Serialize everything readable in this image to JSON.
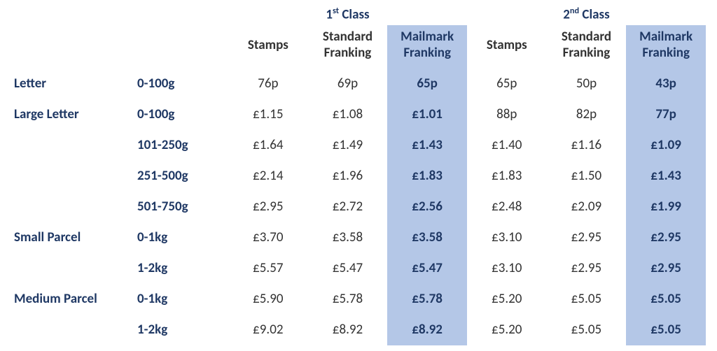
{
  "colors": {
    "brand_navy": "#1f3864",
    "mailmark_bg": "#b4c7e7",
    "text_default": "#333333",
    "background": "#ffffff"
  },
  "typography": {
    "font_family": "Calibri",
    "header_fontsize_pt": 14,
    "cell_fontsize_pt": 14
  },
  "headers": {
    "class1_pre": "1",
    "class1_sup": "st",
    "class1_post": " Class",
    "class2_pre": "2",
    "class2_sup": "nd",
    "class2_post": " Class",
    "sub_stamps": "Stamps",
    "sub_std_l1": "Standard",
    "sub_std_l2": "Franking",
    "sub_mm_l1": "Mailmark",
    "sub_mm_l2": "Franking"
  },
  "rows": [
    {
      "category": "Letter",
      "weight": "0-100g",
      "c1s": "76p",
      "c1f": "69p",
      "c1m": "65p",
      "c2s": "65p",
      "c2f": "50p",
      "c2m": "43p"
    },
    {
      "category": "Large Letter",
      "weight": "0-100g",
      "c1s": "£1.15",
      "c1f": "£1.08",
      "c1m": "£1.01",
      "c2s": "88p",
      "c2f": "82p",
      "c2m": "77p"
    },
    {
      "category": "",
      "weight": "101-250g",
      "c1s": "£1.64",
      "c1f": "£1.49",
      "c1m": "£1.43",
      "c2s": "£1.40",
      "c2f": "£1.16",
      "c2m": "£1.09"
    },
    {
      "category": "",
      "weight": "251-500g",
      "c1s": "£2.14",
      "c1f": "£1.96",
      "c1m": "£1.83",
      "c2s": "£1.83",
      "c2f": "£1.50",
      "c2m": "£1.43"
    },
    {
      "category": "",
      "weight": "501-750g",
      "c1s": "£2.95",
      "c1f": "£2.72",
      "c1m": "£2.56",
      "c2s": "£2.48",
      "c2f": "£2.09",
      "c2m": "£1.99"
    },
    {
      "category": "Small Parcel",
      "weight": "0-1kg",
      "c1s": "£3.70",
      "c1f": "£3.58",
      "c1m": "£3.58",
      "c2s": "£3.10",
      "c2f": "£2.95",
      "c2m": "£2.95"
    },
    {
      "category": "",
      "weight": "1-2kg",
      "c1s": "£5.57",
      "c1f": "£5.47",
      "c1m": "£5.47",
      "c2s": "£3.10",
      "c2f": "£2.95",
      "c2m": "£2.95"
    },
    {
      "category": "Medium Parcel",
      "weight": "0-1kg",
      "c1s": "£5.90",
      "c1f": "£5.78",
      "c1m": "£5.78",
      "c2s": "£5.20",
      "c2f": "£5.05",
      "c2m": "£5.05"
    },
    {
      "category": "",
      "weight": "1-2kg",
      "c1s": "£9.02",
      "c1f": "£8.92",
      "c1m": "£8.92",
      "c2s": "£5.20",
      "c2f": "£5.05",
      "c2m": "£5.05"
    }
  ]
}
